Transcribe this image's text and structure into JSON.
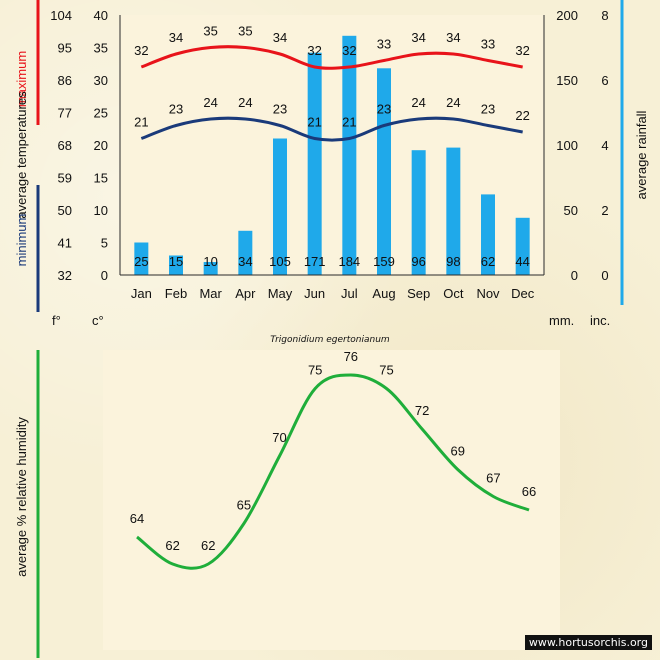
{
  "title": "Trigonidium egertonianum",
  "footer": "www.hortusorchis.org",
  "colors": {
    "max_line": "#e8131a",
    "min_line": "#1a3a7a",
    "rain_bar": "#1fa9ea",
    "humidity_line": "#1fae3a",
    "bg": "#f7f0d6"
  },
  "temperature_chart": {
    "label_maximum": "maximum",
    "label_minimum": "minimum",
    "label_avg_temps": "average  temperatures",
    "label_avg_rainfall": "average rainfall",
    "unit_f": "f°",
    "unit_c": "c°",
    "unit_mm": "mm.",
    "unit_inc": "inc.",
    "f_ticks": [
      "104",
      "95",
      "86",
      "77",
      "68",
      "59",
      "50",
      "41",
      "32"
    ],
    "c_ticks": [
      "40",
      "35",
      "30",
      "25",
      "20",
      "15",
      "10",
      "5",
      "0"
    ],
    "mm_ticks": [
      "200",
      "150",
      "100",
      "50",
      "0"
    ],
    "inc_ticks": [
      "8",
      "6",
      "4",
      "2",
      "0"
    ]
  },
  "chart_data": [
    {
      "type": "bar",
      "title": "Trigonidium egertonianum",
      "categories": [
        "Jan",
        "Feb",
        "Mar",
        "Apr",
        "May",
        "Jun",
        "Jul",
        "Aug",
        "Sep",
        "Oct",
        "Nov",
        "Dec"
      ],
      "series": [
        {
          "name": "maximum",
          "kind": "line",
          "unit": "c°",
          "values": [
            32,
            34,
            35,
            35,
            34,
            32,
            32,
            33,
            34,
            34,
            33,
            32
          ]
        },
        {
          "name": "minimum",
          "kind": "line",
          "unit": "c°",
          "values": [
            21,
            23,
            24,
            24,
            23,
            21,
            21,
            23,
            24,
            24,
            23,
            22
          ]
        },
        {
          "name": "average rainfall",
          "kind": "bar",
          "unit": "mm.",
          "values": [
            25,
            15,
            10,
            34,
            105,
            171,
            184,
            159,
            96,
            98,
            62,
            44
          ]
        }
      ],
      "ylim_c": [
        0,
        40
      ],
      "ylim_f": [
        32,
        104
      ],
      "ylim_mm": [
        0,
        200
      ],
      "ylim_inc": [
        0,
        8
      ]
    },
    {
      "type": "line",
      "ylabel": "average %  relative humidity",
      "categories": [
        "Jan",
        "Feb",
        "Mar",
        "Apr",
        "May",
        "Jun",
        "Jul",
        "Aug",
        "Sep",
        "Oct",
        "Nov",
        "Dec"
      ],
      "values": [
        64,
        62,
        62,
        65,
        70,
        75,
        76,
        75,
        72,
        69,
        67,
        66
      ]
    }
  ]
}
